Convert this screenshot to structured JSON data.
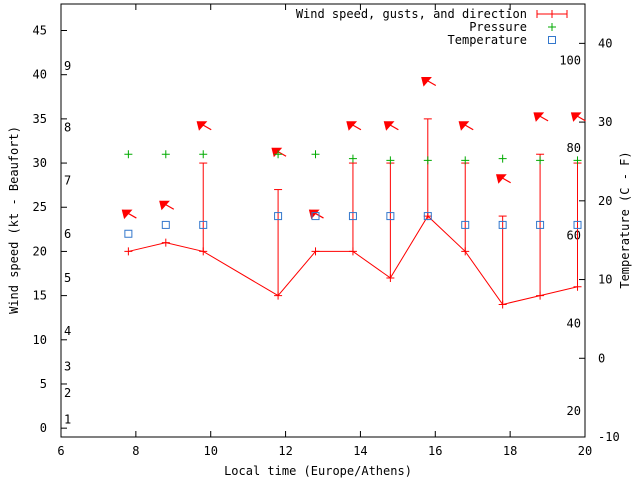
{
  "chart_data": {
    "type": "line",
    "xlabel": "Local time (Europe/Athens)",
    "ylabel_left": "Wind speed (kt - Beaufort)",
    "ylabel_right": "Temperature (C - F)",
    "xlim": [
      6,
      20
    ],
    "ylim_left": [
      -1,
      48
    ],
    "ylim_right_celsius": [
      -10,
      45
    ],
    "x_ticks": [
      6,
      8,
      10,
      12,
      14,
      16,
      18,
      20
    ],
    "y_ticks_kt": [
      0,
      5,
      10,
      15,
      20,
      25,
      30,
      35,
      40,
      45
    ],
    "y_ticks_celsius": [
      -10,
      0,
      10,
      20,
      30,
      40
    ],
    "beaufort_labels": [
      {
        "value": 1,
        "kt": 1.0
      },
      {
        "value": 2,
        "kt": 4.0
      },
      {
        "value": 3,
        "kt": 7.0
      },
      {
        "value": 4,
        "kt": 11.0
      },
      {
        "value": 5,
        "kt": 17.0
      },
      {
        "value": 6,
        "kt": 22.0
      },
      {
        "value": 7,
        "kt": 28.0
      },
      {
        "value": 8,
        "kt": 34.0
      },
      {
        "value": 9,
        "kt": 41.0
      }
    ],
    "fahrenheit_labels": [
      {
        "value": 20,
        "celsius": -6.7
      },
      {
        "value": 40,
        "celsius": 4.4
      },
      {
        "value": 60,
        "celsius": 15.6
      },
      {
        "value": 80,
        "celsius": 26.7
      },
      {
        "value": 100,
        "celsius": 37.8
      }
    ],
    "legend_position": "top-right",
    "series": [
      {
        "name": "Wind speed, gusts, and direction",
        "color": "#ff0000",
        "x": [
          7.8,
          8.8,
          9.8,
          11.8,
          12.8,
          13.8,
          14.8,
          15.8,
          16.8,
          17.8,
          18.8,
          19.8
        ],
        "speed": [
          20,
          21,
          20,
          15,
          20,
          20,
          17,
          24,
          20,
          14,
          15,
          16
        ],
        "gust": [
          null,
          null,
          30,
          27,
          null,
          30,
          30,
          35,
          30,
          24,
          31,
          30
        ],
        "arrow_y": [
          24,
          25,
          34,
          31,
          24,
          34,
          34,
          39,
          34,
          28,
          35,
          35
        ],
        "arrow_dir": [
          "nw",
          "nw",
          "nw",
          "nw",
          "nw",
          "nw",
          "nw",
          "nw",
          "nw",
          "nw",
          "nw",
          "nw"
        ]
      },
      {
        "name": "Pressure",
        "color": "#00aa00",
        "x": [
          7.8,
          8.8,
          9.8,
          11.8,
          12.8,
          13.8,
          14.8,
          15.8,
          16.8,
          17.8,
          18.8,
          19.8
        ],
        "values": [
          31,
          31,
          31,
          31,
          31,
          30.5,
          30.3,
          30.3,
          30.3,
          30.5,
          30.3,
          30.3
        ]
      },
      {
        "name": "Temperature",
        "color": "#3377cc",
        "x": [
          7.8,
          8.8,
          9.8,
          11.8,
          12.8,
          13.8,
          14.8,
          15.8,
          16.8,
          17.8,
          18.8,
          19.8
        ],
        "values": [
          22,
          23,
          23,
          24,
          24,
          24,
          24,
          24,
          23,
          23,
          23,
          23
        ]
      }
    ]
  }
}
